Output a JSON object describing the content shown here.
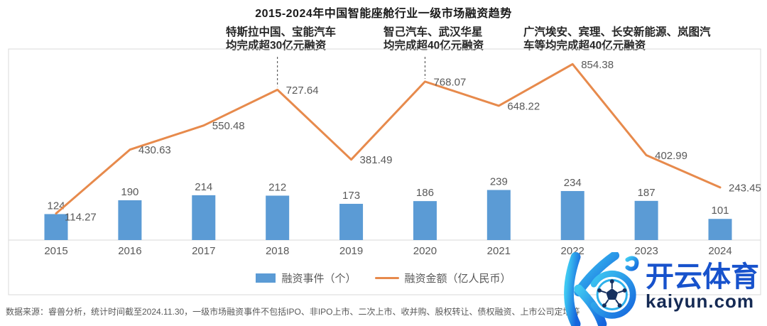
{
  "chart_data": {
    "type": "bar+line",
    "title": "2015-2024年中国智能座舱行业一级市场融资趋势",
    "categories": [
      "2015",
      "2016",
      "2017",
      "2018",
      "2019",
      "2020",
      "2021",
      "2022",
      "2023",
      "2024"
    ],
    "series": [
      {
        "name": "融资事件（个）",
        "type": "bar",
        "color": "#5b9bd5",
        "values": [
          124,
          190,
          214,
          212,
          173,
          186,
          239,
          234,
          187,
          101
        ]
      },
      {
        "name": "融资金额（亿人民币）",
        "type": "line",
        "color": "#e78a4c",
        "values": [
          114.27,
          430.63,
          550.48,
          727.64,
          381.49,
          768.07,
          648.22,
          854.38,
          402.99,
          243.45
        ]
      }
    ],
    "annotations": [
      {
        "year": "2018",
        "connector": true,
        "lines": [
          "特斯拉中国、宝能汽车",
          "均完成超30亿元融资"
        ]
      },
      {
        "year": "2020",
        "connector": true,
        "lines": [
          "智己汽车、武汉华星",
          "均完成超40亿元融资"
        ]
      },
      {
        "year": "2022",
        "connector": false,
        "lines": [
          "广汽埃安、宾理、长安新能源、岚图汽",
          "车等均完成超40亿元融资"
        ]
      }
    ],
    "legend_position": "bottom",
    "grid": false,
    "ylim_bar": [
      0,
      900
    ],
    "ylim_line": [
      0,
      930
    ]
  },
  "theme": {
    "axis": "#d9d9d9",
    "label": "#595959",
    "title_color": "#1a1a1a",
    "connector": "#404040"
  },
  "footer": {
    "text": "数据来源：睿兽分析，统计时间截至2024.11.30，一级市场融资事件不包括IPO、非IPO上市、二次上市、收并购、股权转让、债权融资、上市公司定增等"
  },
  "watermark": {
    "brand_cn": "开云体育",
    "brand_url": "kaiyun.com",
    "brand_color": "#1752cc",
    "url_color": "#152a54"
  }
}
